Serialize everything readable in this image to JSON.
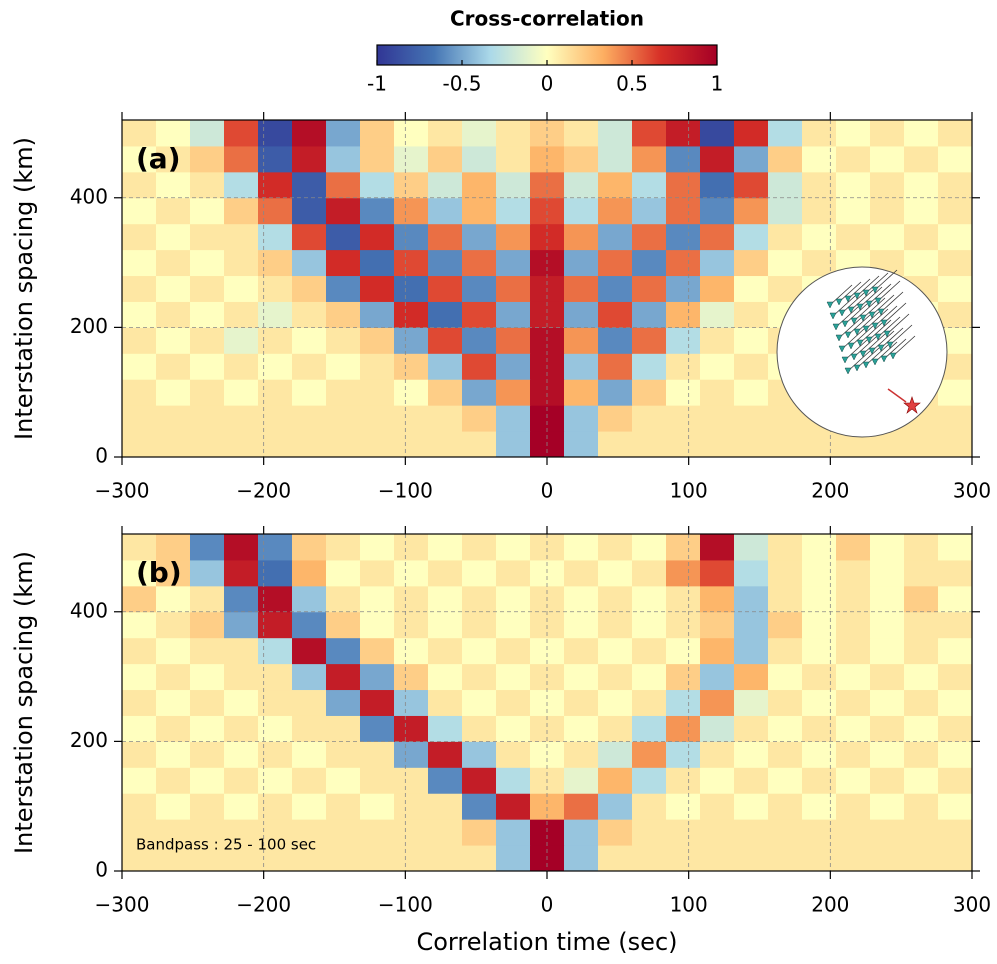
{
  "colorbar": {
    "title": "Cross-correlation",
    "lim": [
      -1,
      1
    ],
    "ticks": [
      -1,
      -0.5,
      0,
      0.5,
      1
    ],
    "colors": [
      "#313695",
      "#4575b4",
      "#abd9e9",
      "#ffffbf",
      "#fdae61",
      "#d73027",
      "#a50026"
    ]
  },
  "chart_data": [
    {
      "type": "heatmap",
      "panel_label": "(a)",
      "ylabel": "Interstation spacing (km)",
      "xlim": [
        -300,
        300
      ],
      "ylim": [
        0,
        520
      ],
      "xticks": [
        {
          "value": -300,
          "label": "−300"
        },
        {
          "value": -200,
          "label": "−200"
        },
        {
          "value": -100,
          "label": "−100"
        },
        0,
        100,
        200,
        300
      ],
      "yticks": [
        0,
        200,
        400
      ],
      "grid": true,
      "z": [
        [
          0.1,
          0.1,
          0.1,
          0.1,
          0.1,
          0.1,
          0.1,
          0.1,
          0.1,
          0.1,
          0.1,
          -0.4,
          1,
          -0.4,
          0.1,
          0.1,
          0.1,
          0.1,
          0.1,
          0.1,
          0.1,
          0.1,
          0.1,
          0.1,
          0.1
        ],
        [
          0.1,
          0.1,
          0.1,
          0.1,
          0.1,
          0.1,
          0.1,
          0.1,
          0.1,
          0.1,
          0.2,
          -0.4,
          1,
          -0.4,
          0.2,
          0.1,
          0.1,
          0.1,
          0.1,
          0.1,
          0.1,
          0.1,
          0.1,
          0.1,
          0.1
        ],
        [
          0.1,
          0,
          0.1,
          0,
          0.1,
          0,
          0.1,
          0.1,
          0,
          0.2,
          -0.5,
          0.4,
          0.9,
          0.3,
          -0.5,
          0.2,
          0,
          0.1,
          0,
          0.1,
          0,
          0.1,
          0,
          0.1,
          0
        ],
        [
          0,
          0.1,
          0,
          0.1,
          0,
          0.1,
          0,
          0.1,
          0.2,
          -0.4,
          0.6,
          -0.5,
          0.9,
          -0.4,
          0.5,
          -0.3,
          0.1,
          0,
          0.1,
          0,
          0.1,
          0,
          0.1,
          0,
          0.1
        ],
        [
          0.1,
          0,
          0.1,
          -0.1,
          0.1,
          0,
          0.1,
          0.2,
          -0.5,
          0.6,
          -0.6,
          0.5,
          0.9,
          0.4,
          -0.6,
          0.5,
          -0.3,
          0.1,
          0,
          0.1,
          0,
          0.1,
          0,
          0.1,
          0
        ],
        [
          0,
          0.1,
          0,
          0.1,
          -0.1,
          0.1,
          0.2,
          -0.5,
          0.7,
          -0.7,
          0.6,
          -0.5,
          0.8,
          -0.5,
          0.6,
          -0.5,
          0.3,
          -0.1,
          0.1,
          0,
          0.1,
          0,
          0.1,
          0,
          0.1
        ],
        [
          0.1,
          0,
          0.1,
          0,
          0.1,
          0.2,
          -0.6,
          0.7,
          -0.7,
          0.6,
          -0.6,
          0.5,
          0.8,
          0.5,
          -0.6,
          0.5,
          -0.5,
          0.3,
          0,
          0.1,
          0,
          0.1,
          0,
          0.1,
          0
        ],
        [
          0,
          0.1,
          0,
          0.1,
          0.2,
          -0.4,
          0.7,
          -0.7,
          0.6,
          -0.6,
          0.5,
          -0.5,
          0.9,
          -0.5,
          0.5,
          -0.6,
          0.5,
          -0.4,
          0.2,
          0,
          0.1,
          0,
          0.1,
          0,
          0.1
        ],
        [
          0.1,
          0,
          0.1,
          0.1,
          -0.3,
          0.6,
          -0.8,
          0.7,
          -0.6,
          0.5,
          -0.5,
          0.4,
          0.7,
          0.4,
          -0.5,
          0.5,
          -0.6,
          0.5,
          -0.3,
          0.1,
          0,
          0.1,
          0,
          0.1,
          0
        ],
        [
          0,
          0.1,
          0,
          0.2,
          0.5,
          -0.8,
          0.8,
          -0.6,
          0.4,
          -0.4,
          0.3,
          -0.3,
          0.6,
          -0.3,
          0.4,
          -0.4,
          0.5,
          -0.6,
          0.4,
          -0.2,
          0.1,
          0,
          0.1,
          0,
          0.1
        ],
        [
          0.1,
          0,
          0.1,
          -0.3,
          0.7,
          -0.8,
          0.5,
          -0.3,
          0.2,
          -0.2,
          0.3,
          -0.2,
          0.5,
          -0.2,
          0.3,
          -0.3,
          0.5,
          -0.7,
          0.6,
          -0.2,
          0.1,
          0,
          0.1,
          0,
          0.1
        ],
        [
          0,
          0.1,
          0.2,
          0.5,
          -0.8,
          0.8,
          -0.4,
          0.2,
          -0.1,
          0.2,
          -0.2,
          0.1,
          0.3,
          0.2,
          -0.2,
          0.4,
          -0.6,
          0.8,
          -0.5,
          0.2,
          0,
          0.1,
          0,
          0.1,
          0
        ],
        [
          0.1,
          0,
          -0.2,
          0.6,
          -0.9,
          0.9,
          -0.5,
          0.2,
          0,
          0.1,
          -0.1,
          0.1,
          0.2,
          0.1,
          -0.2,
          0.6,
          0.8,
          -0.9,
          0.7,
          -0.3,
          0.1,
          0,
          0.1,
          0,
          0.1
        ]
      ]
    },
    {
      "type": "heatmap",
      "panel_label": "(b)",
      "ylabel": "Interstation spacing (km)",
      "xlabel": "Correlation time (sec)",
      "annotation": "Bandpass : 25 - 100 sec",
      "xlim": [
        -300,
        300
      ],
      "ylim": [
        0,
        520
      ],
      "xticks": [
        {
          "value": -300,
          "label": "−300"
        },
        {
          "value": -200,
          "label": "−200"
        },
        {
          "value": -100,
          "label": "−100"
        },
        0,
        100,
        200,
        300
      ],
      "yticks": [
        0,
        200,
        400
      ],
      "grid": true,
      "z": [
        [
          0.1,
          0.1,
          0.1,
          0.1,
          0.1,
          0.1,
          0.1,
          0.1,
          0.1,
          0.1,
          0.1,
          -0.4,
          1,
          -0.4,
          0.1,
          0.1,
          0.1,
          0.1,
          0.1,
          0.1,
          0.1,
          0.1,
          0.1,
          0.1,
          0.1
        ],
        [
          0.1,
          0.1,
          0.1,
          0.1,
          0.1,
          0.1,
          0.1,
          0.1,
          0.1,
          0.1,
          0.2,
          -0.4,
          1,
          -0.4,
          0.2,
          0.1,
          0.1,
          0.1,
          0.1,
          0.1,
          0.1,
          0.1,
          0.1,
          0.1,
          0.1
        ],
        [
          0.1,
          0,
          0.1,
          0,
          0.1,
          0,
          0.1,
          0,
          0.1,
          0.1,
          -0.6,
          0.8,
          0.3,
          0.5,
          -0.4,
          0.1,
          0,
          0.1,
          0,
          0.1,
          0,
          0.1,
          0,
          0.1,
          0
        ],
        [
          0,
          0.1,
          0,
          0.1,
          0,
          0.1,
          0,
          0.1,
          0.1,
          -0.6,
          0.8,
          -0.3,
          0.1,
          -0.1,
          0.3,
          -0.3,
          0.1,
          0,
          0.1,
          0,
          0.1,
          0,
          0.1,
          0,
          0.1
        ],
        [
          0.1,
          0,
          0.1,
          0,
          0.1,
          0,
          0.1,
          0.1,
          -0.5,
          0.8,
          -0.4,
          0.1,
          0,
          0.1,
          -0.2,
          0.4,
          -0.3,
          0.1,
          0,
          0.1,
          0,
          0.1,
          0,
          0.1,
          0
        ],
        [
          0,
          0.1,
          0,
          0.1,
          0,
          0.1,
          0.1,
          -0.6,
          0.8,
          -0.3,
          0.1,
          0,
          0.1,
          0,
          0.1,
          -0.3,
          0.4,
          -0.2,
          0.1,
          0,
          0.1,
          0,
          0.1,
          0,
          0.1
        ],
        [
          0.1,
          0,
          0.1,
          0,
          0.1,
          0.1,
          -0.5,
          0.8,
          -0.4,
          0.1,
          0,
          0.1,
          0,
          0.1,
          0,
          0.1,
          -0.3,
          0.4,
          -0.1,
          0.1,
          0,
          0.1,
          0,
          0.1,
          0
        ],
        [
          0,
          0.1,
          0,
          0.1,
          0.1,
          -0.4,
          0.8,
          -0.5,
          0.2,
          0,
          0.1,
          0,
          0.1,
          0,
          0.1,
          0,
          0.2,
          -0.4,
          0.3,
          0,
          0.1,
          0,
          0.1,
          0,
          0.1
        ],
        [
          0.1,
          0,
          0.1,
          0.1,
          -0.3,
          0.9,
          -0.6,
          0.2,
          0,
          0.1,
          0,
          0.1,
          0,
          0.1,
          0,
          0.1,
          0,
          0.3,
          -0.4,
          0.1,
          0,
          0.1,
          0,
          0.1,
          0
        ],
        [
          0,
          0.1,
          0.2,
          -0.5,
          0.8,
          -0.6,
          0.2,
          0,
          0.1,
          0,
          0.1,
          0,
          0.1,
          0,
          0.1,
          0,
          0.1,
          0.2,
          -0.4,
          0.2,
          0,
          0.1,
          0,
          0.1,
          0.1
        ],
        [
          0.2,
          0,
          0.1,
          -0.6,
          0.9,
          -0.4,
          0.1,
          0,
          0.1,
          0,
          0.1,
          0,
          0.1,
          0,
          0.1,
          0,
          0.1,
          0.3,
          -0.4,
          0.1,
          0,
          0.1,
          0,
          0.2,
          0
        ],
        [
          0,
          0.2,
          -0.4,
          0.8,
          -0.7,
          0.3,
          0,
          0.1,
          0,
          0.1,
          0,
          0.1,
          0,
          0.1,
          0,
          0.1,
          0.4,
          0.6,
          -0.3,
          0.1,
          0,
          0.1,
          0,
          0.1,
          0.1
        ],
        [
          0.1,
          0.2,
          -0.6,
          0.9,
          -0.6,
          0.2,
          0.1,
          0,
          0.1,
          0,
          0.1,
          0,
          0.1,
          0,
          0.1,
          0,
          0.2,
          0.9,
          -0.2,
          0.1,
          0,
          0.2,
          0,
          0.1,
          0
        ]
      ]
    }
  ]
}
